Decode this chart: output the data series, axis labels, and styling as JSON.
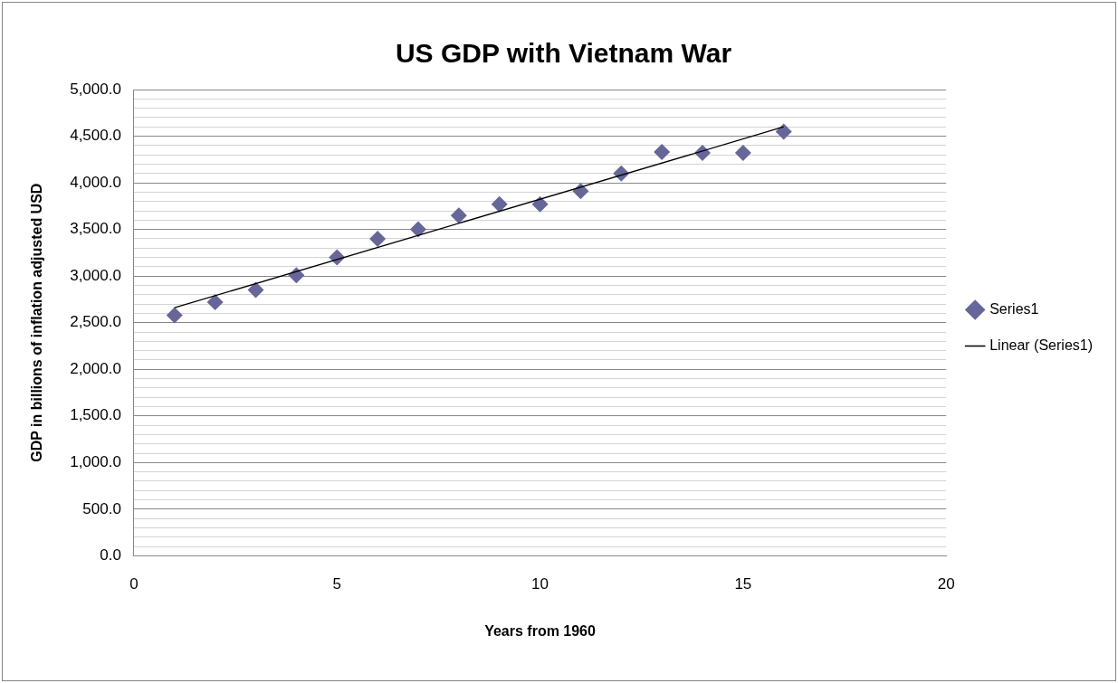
{
  "chart_data": {
    "type": "scatter",
    "title": "US GDP with Vietnam War",
    "xlabel": "Years from 1960",
    "ylabel": "GDP in billions of inflation adjusted USD",
    "x": [
      1,
      2,
      3,
      4,
      5,
      6,
      7,
      8,
      9,
      10,
      11,
      12,
      13,
      14,
      15,
      16
    ],
    "series": [
      {
        "name": "Series1",
        "color": "#666699",
        "marker": "diamond",
        "values": [
          2580,
          2720,
          2850,
          3010,
          3200,
          3400,
          3500,
          3650,
          3770,
          3770,
          3910,
          4100,
          4330,
          4320,
          4320,
          4550
        ]
      },
      {
        "name": "Linear (Series1)",
        "type": "line",
        "color": "#000000",
        "marker": "none",
        "line_style": "solid",
        "x": [
          1,
          16
        ],
        "values": [
          2660,
          4600
        ]
      }
    ],
    "xlim": [
      0,
      20
    ],
    "xticks": [
      0,
      5,
      10,
      15,
      20
    ],
    "ylim": [
      0,
      5000
    ],
    "yticks": [
      {
        "value": 0,
        "label": "0.0"
      },
      {
        "value": 100,
        "label": null
      },
      {
        "value": 200,
        "label": null
      },
      {
        "value": 300,
        "label": null
      },
      {
        "value": 400,
        "label": null
      },
      {
        "value": 500,
        "label": "500.0"
      },
      {
        "value": 600,
        "label": null
      },
      {
        "value": 700,
        "label": null
      },
      {
        "value": 800,
        "label": null
      },
      {
        "value": 900,
        "label": null
      },
      {
        "value": 1000,
        "label": "1,000.0"
      },
      {
        "value": 1100,
        "label": null
      },
      {
        "value": 1200,
        "label": null
      },
      {
        "value": 1300,
        "label": null
      },
      {
        "value": 1400,
        "label": null
      },
      {
        "value": 1500,
        "label": "1,500.0"
      },
      {
        "value": 1600,
        "label": null
      },
      {
        "value": 1700,
        "label": null
      },
      {
        "value": 1800,
        "label": null
      },
      {
        "value": 1900,
        "label": null
      },
      {
        "value": 2000,
        "label": "2,000.0"
      },
      {
        "value": 2100,
        "label": null
      },
      {
        "value": 2200,
        "label": null
      },
      {
        "value": 2300,
        "label": null
      },
      {
        "value": 2400,
        "label": null
      },
      {
        "value": 2500,
        "label": "2,500.0"
      },
      {
        "value": 2600,
        "label": null
      },
      {
        "value": 2700,
        "label": null
      },
      {
        "value": 2800,
        "label": null
      },
      {
        "value": 2900,
        "label": null
      },
      {
        "value": 3000,
        "label": "3,000.0"
      },
      {
        "value": 3100,
        "label": null
      },
      {
        "value": 3200,
        "label": null
      },
      {
        "value": 3300,
        "label": null
      },
      {
        "value": 3400,
        "label": null
      },
      {
        "value": 3500,
        "label": "3,500.0"
      },
      {
        "value": 3600,
        "label": null
      },
      {
        "value": 3700,
        "label": null
      },
      {
        "value": 3800,
        "label": null
      },
      {
        "value": 3900,
        "label": null
      },
      {
        "value": 4000,
        "label": "4,000.0"
      },
      {
        "value": 4100,
        "label": null
      },
      {
        "value": 4200,
        "label": null
      },
      {
        "value": 4300,
        "label": null
      },
      {
        "value": 4400,
        "label": null
      },
      {
        "value": 4500,
        "label": "4,500.0"
      },
      {
        "value": 4600,
        "label": null
      },
      {
        "value": 4700,
        "label": null
      },
      {
        "value": 4800,
        "label": null
      },
      {
        "value": 4900,
        "label": null
      },
      {
        "value": 5000,
        "label": "5,000.0"
      }
    ],
    "grid": "y",
    "legend": "right"
  }
}
